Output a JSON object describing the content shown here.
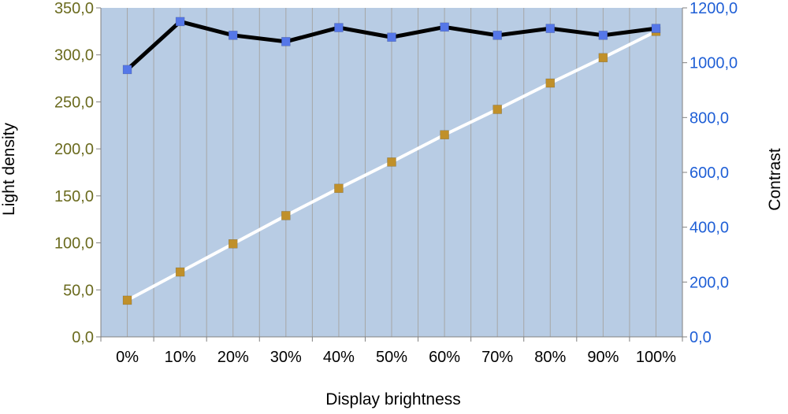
{
  "colors": {
    "plot_background": "#b8cce4",
    "grid": "#a6a6a6",
    "left_axis_text": "#6b6b1f",
    "right_axis_text": "#1f5fd6",
    "light_density_line": "#ffffff",
    "light_density_marker": "#c0902a",
    "contrast_line": "#000000",
    "contrast_marker": "#5577e8"
  },
  "chart_data": {
    "type": "line",
    "xlabel": "Display brightness",
    "ylabel": "Light density",
    "y2label": "Contrast",
    "categories": [
      "0%",
      "10%",
      "20%",
      "30%",
      "40%",
      "50%",
      "60%",
      "70%",
      "80%",
      "90%",
      "100%"
    ],
    "ylim": [
      0,
      350
    ],
    "y2lim": [
      0,
      1200
    ],
    "y_ticks": [
      "0,0",
      "50,0",
      "100,0",
      "150,0",
      "200,0",
      "250,0",
      "300,0",
      "350,0"
    ],
    "y2_ticks": [
      "0,0",
      "200,0",
      "400,0",
      "600,0",
      "800,0",
      "1000,0",
      "1200,0"
    ],
    "grid": "vertical",
    "series": [
      {
        "key": "light_density",
        "axis": "left",
        "values": [
          39,
          69,
          99,
          129,
          158,
          186,
          215,
          242,
          270,
          297,
          325
        ]
      },
      {
        "key": "contrast",
        "axis": "right",
        "values": [
          975,
          1150,
          1100,
          1077,
          1128,
          1093,
          1130,
          1100,
          1125,
          1100,
          1125
        ]
      }
    ]
  }
}
